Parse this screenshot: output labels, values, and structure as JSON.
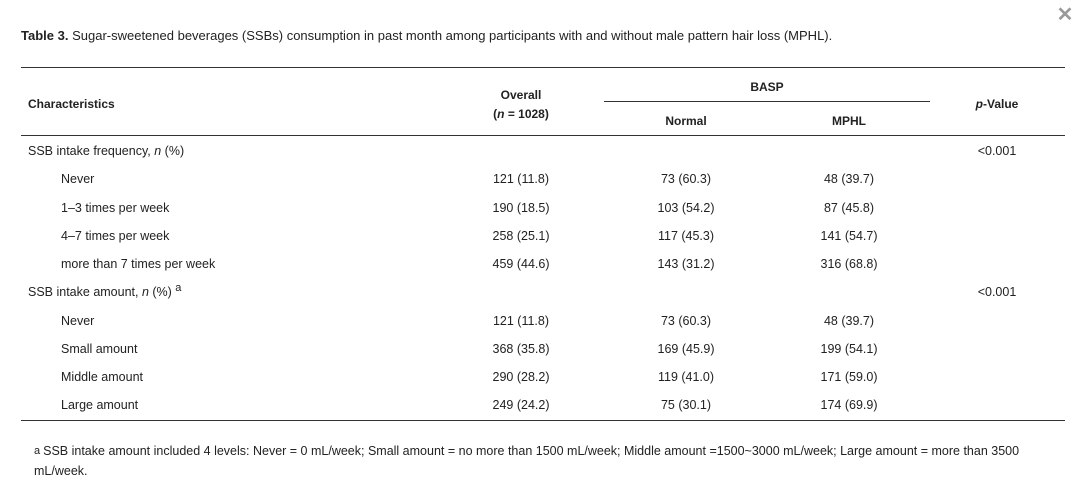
{
  "close_icon": "close-icon",
  "caption": {
    "label": "Table 3.",
    "text": "Sugar-sweetened beverages (SSBs) consumption in past month among participants with and without male pattern hair loss (MPHL)."
  },
  "header": {
    "characteristics": "Characteristics",
    "overall": "Overall",
    "overall_n_prefix": "(",
    "overall_n_italic": "n",
    "overall_n_suffix": " = 1028)",
    "basp": "BASP",
    "normal": "Normal",
    "mphl": "MPHL",
    "pvalue_italic": "p",
    "pvalue_suffix": "-Value"
  },
  "rows": [
    {
      "label_prefix": "SSB intake frequency, ",
      "label_italic": "n",
      "label_suffix": " (%)",
      "sup": "",
      "overall": "",
      "normal": "",
      "mphl": "",
      "p": "<0.001"
    },
    {
      "label": "Never",
      "overall": "121 (11.8)",
      "normal": "73 (60.3)",
      "mphl": "48 (39.7)",
      "p": ""
    },
    {
      "label": "1–3 times per week",
      "overall": "190 (18.5)",
      "normal": "103 (54.2)",
      "mphl": "87 (45.8)",
      "p": ""
    },
    {
      "label": "4–7 times per week",
      "overall": "258 (25.1)",
      "normal": "117 (45.3)",
      "mphl": "141 (54.7)",
      "p": ""
    },
    {
      "label": "more than 7 times per week",
      "overall": "459 (44.6)",
      "normal": "143 (31.2)",
      "mphl": "316 (68.8)",
      "p": ""
    },
    {
      "label_prefix": "SSB intake amount, ",
      "label_italic": "n",
      "label_suffix": " (%) ",
      "sup": "a",
      "overall": "",
      "normal": "",
      "mphl": "",
      "p": "<0.001"
    },
    {
      "label": "Never",
      "overall": "121 (11.8)",
      "normal": "73 (60.3)",
      "mphl": "48 (39.7)",
      "p": ""
    },
    {
      "label": "Small amount",
      "overall": "368 (35.8)",
      "normal": "169 (45.9)",
      "mphl": "199 (54.1)",
      "p": ""
    },
    {
      "label": "Middle amount",
      "overall": "290 (28.2)",
      "normal": "119 (41.0)",
      "mphl": "171 (59.0)",
      "p": ""
    },
    {
      "label": "Large amount",
      "overall": "249 (24.2)",
      "normal": "75 (30.1)",
      "mphl": "174 (69.9)",
      "p": ""
    }
  ],
  "footnote": {
    "marker": "a",
    "text": "SSB intake amount included 4 levels: Never = 0 mL/week; Small amount = no more than 1500 mL/week; Middle amount =1500~3000 mL/week; Large amount = more than 3500 mL/week."
  }
}
